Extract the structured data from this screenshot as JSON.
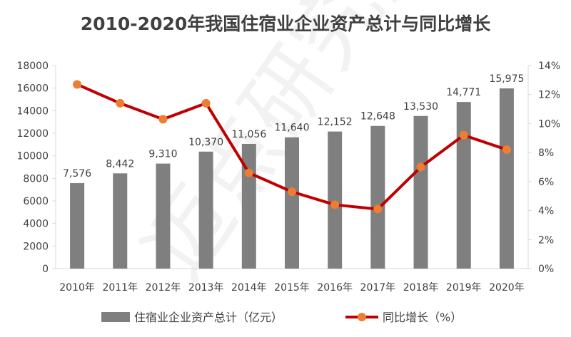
{
  "title": "2010-2020年我国住宿业企业资产总计与同比增长",
  "watermark": "迈点研究院",
  "legend": {
    "bar_label": "住宿业企业资产总计（亿元）",
    "line_label": "同比增长（%）"
  },
  "colors": {
    "bar": "#7f7f7f",
    "line": "#c00000",
    "marker": "#ed7d31",
    "text": "#404040",
    "axis": "#d9d9d9"
  },
  "chart_data": {
    "type": "bar",
    "title": "2010-2020年我国住宿业企业资产总计与同比增长",
    "categories": [
      "2010年",
      "2011年",
      "2012年",
      "2013年",
      "2014年",
      "2015年",
      "2016年",
      "2017年",
      "2018年",
      "2019年",
      "2020年"
    ],
    "series": [
      {
        "name": "住宿业企业资产总计（亿元）",
        "type": "bar",
        "axis": "left",
        "values": [
          7576,
          8442,
          9310,
          10370,
          11056,
          11640,
          12152,
          12648,
          13530,
          14771,
          15975
        ],
        "labels": [
          "7,576",
          "8,442",
          "9,310",
          "10,370",
          "11,056",
          "11,640",
          "12,152",
          "12,648",
          "13,530",
          "14,771",
          "15,975"
        ]
      },
      {
        "name": "同比增长（%）",
        "type": "line",
        "axis": "right",
        "values": [
          12.7,
          11.4,
          10.3,
          11.4,
          6.6,
          5.3,
          4.4,
          4.1,
          7.0,
          9.2,
          8.2
        ]
      }
    ],
    "ylim_left": [
      0,
      18000
    ],
    "yticks_left": [
      "0",
      "2000",
      "4000",
      "6000",
      "8000",
      "10000",
      "12000",
      "14000",
      "16000",
      "18000"
    ],
    "ylim_right": [
      0,
      14
    ],
    "yticks_right": [
      "0%",
      "2%",
      "4%",
      "6%",
      "8%",
      "10%",
      "12%",
      "14%"
    ],
    "grid": false,
    "legend_position": "bottom"
  }
}
